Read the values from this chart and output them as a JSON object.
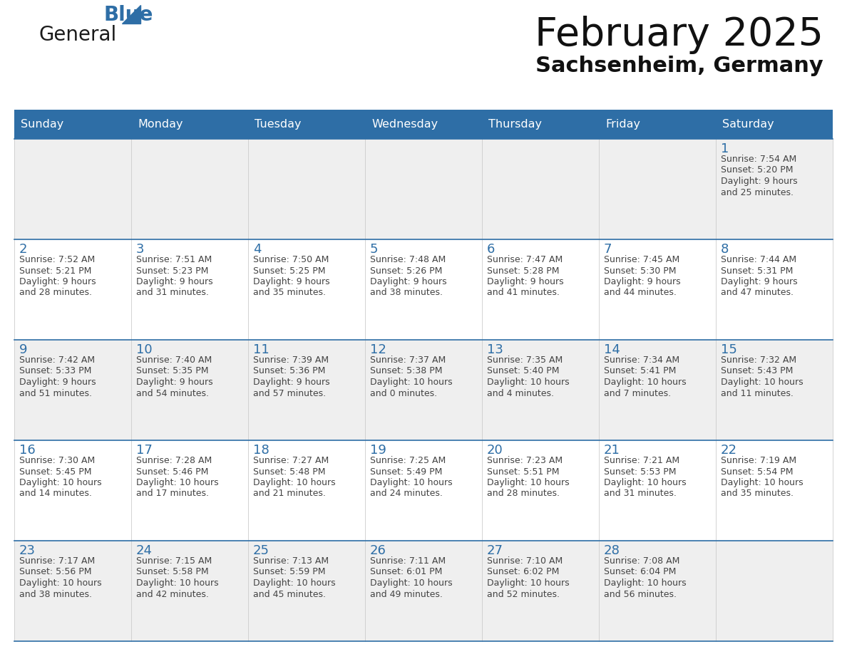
{
  "title": "February 2025",
  "subtitle": "Sachsenheim, Germany",
  "days_of_week": [
    "Sunday",
    "Monday",
    "Tuesday",
    "Wednesday",
    "Thursday",
    "Friday",
    "Saturday"
  ],
  "header_bg": "#2E6EA6",
  "header_text": "#FFFFFF",
  "cell_bg_even": "#EFEFEF",
  "cell_bg_odd": "#FFFFFF",
  "cell_border": "#2E6EA6",
  "day_num_color": "#2E6EA6",
  "text_color": "#444444",
  "logo_general_color": "#1a1a1a",
  "logo_blue_color": "#2E6EA6",
  "calendar": [
    [
      null,
      null,
      null,
      null,
      null,
      null,
      {
        "day": 1,
        "sunrise": "7:54 AM",
        "sunset": "5:20 PM",
        "daylight": "9 hours and 25 minutes."
      }
    ],
    [
      {
        "day": 2,
        "sunrise": "7:52 AM",
        "sunset": "5:21 PM",
        "daylight": "9 hours and 28 minutes."
      },
      {
        "day": 3,
        "sunrise": "7:51 AM",
        "sunset": "5:23 PM",
        "daylight": "9 hours and 31 minutes."
      },
      {
        "day": 4,
        "sunrise": "7:50 AM",
        "sunset": "5:25 PM",
        "daylight": "9 hours and 35 minutes."
      },
      {
        "day": 5,
        "sunrise": "7:48 AM",
        "sunset": "5:26 PM",
        "daylight": "9 hours and 38 minutes."
      },
      {
        "day": 6,
        "sunrise": "7:47 AM",
        "sunset": "5:28 PM",
        "daylight": "9 hours and 41 minutes."
      },
      {
        "day": 7,
        "sunrise": "7:45 AM",
        "sunset": "5:30 PM",
        "daylight": "9 hours and 44 minutes."
      },
      {
        "day": 8,
        "sunrise": "7:44 AM",
        "sunset": "5:31 PM",
        "daylight": "9 hours and 47 minutes."
      }
    ],
    [
      {
        "day": 9,
        "sunrise": "7:42 AM",
        "sunset": "5:33 PM",
        "daylight": "9 hours and 51 minutes."
      },
      {
        "day": 10,
        "sunrise": "7:40 AM",
        "sunset": "5:35 PM",
        "daylight": "9 hours and 54 minutes."
      },
      {
        "day": 11,
        "sunrise": "7:39 AM",
        "sunset": "5:36 PM",
        "daylight": "9 hours and 57 minutes."
      },
      {
        "day": 12,
        "sunrise": "7:37 AM",
        "sunset": "5:38 PM",
        "daylight": "10 hours and 0 minutes."
      },
      {
        "day": 13,
        "sunrise": "7:35 AM",
        "sunset": "5:40 PM",
        "daylight": "10 hours and 4 minutes."
      },
      {
        "day": 14,
        "sunrise": "7:34 AM",
        "sunset": "5:41 PM",
        "daylight": "10 hours and 7 minutes."
      },
      {
        "day": 15,
        "sunrise": "7:32 AM",
        "sunset": "5:43 PM",
        "daylight": "10 hours and 11 minutes."
      }
    ],
    [
      {
        "day": 16,
        "sunrise": "7:30 AM",
        "sunset": "5:45 PM",
        "daylight": "10 hours and 14 minutes."
      },
      {
        "day": 17,
        "sunrise": "7:28 AM",
        "sunset": "5:46 PM",
        "daylight": "10 hours and 17 minutes."
      },
      {
        "day": 18,
        "sunrise": "7:27 AM",
        "sunset": "5:48 PM",
        "daylight": "10 hours and 21 minutes."
      },
      {
        "day": 19,
        "sunrise": "7:25 AM",
        "sunset": "5:49 PM",
        "daylight": "10 hours and 24 minutes."
      },
      {
        "day": 20,
        "sunrise": "7:23 AM",
        "sunset": "5:51 PM",
        "daylight": "10 hours and 28 minutes."
      },
      {
        "day": 21,
        "sunrise": "7:21 AM",
        "sunset": "5:53 PM",
        "daylight": "10 hours and 31 minutes."
      },
      {
        "day": 22,
        "sunrise": "7:19 AM",
        "sunset": "5:54 PM",
        "daylight": "10 hours and 35 minutes."
      }
    ],
    [
      {
        "day": 23,
        "sunrise": "7:17 AM",
        "sunset": "5:56 PM",
        "daylight": "10 hours and 38 minutes."
      },
      {
        "day": 24,
        "sunrise": "7:15 AM",
        "sunset": "5:58 PM",
        "daylight": "10 hours and 42 minutes."
      },
      {
        "day": 25,
        "sunrise": "7:13 AM",
        "sunset": "5:59 PM",
        "daylight": "10 hours and 45 minutes."
      },
      {
        "day": 26,
        "sunrise": "7:11 AM",
        "sunset": "6:01 PM",
        "daylight": "10 hours and 49 minutes."
      },
      {
        "day": 27,
        "sunrise": "7:10 AM",
        "sunset": "6:02 PM",
        "daylight": "10 hours and 52 minutes."
      },
      {
        "day": 28,
        "sunrise": "7:08 AM",
        "sunset": "6:04 PM",
        "daylight": "10 hours and 56 minutes."
      },
      null
    ]
  ]
}
